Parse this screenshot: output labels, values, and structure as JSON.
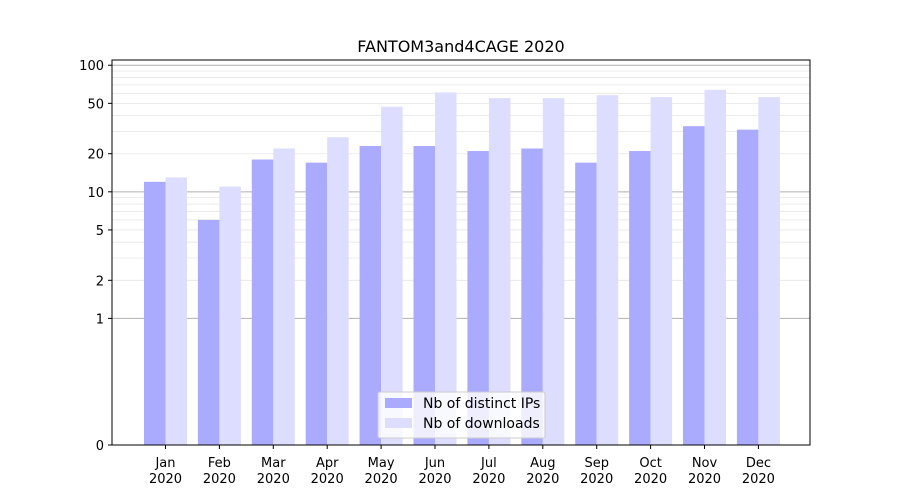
{
  "chart_data": {
    "type": "bar",
    "title": "FANTOM3and4CAGE 2020",
    "xlabel": "",
    "ylabel": "",
    "yscale": "symlog",
    "ylim": [
      0,
      110
    ],
    "yticks": [
      0,
      1,
      2,
      5,
      10,
      20,
      50,
      100
    ],
    "categories": [
      [
        "Jan",
        "2020"
      ],
      [
        "Feb",
        "2020"
      ],
      [
        "Mar",
        "2020"
      ],
      [
        "Apr",
        "2020"
      ],
      [
        "May",
        "2020"
      ],
      [
        "Jun",
        "2020"
      ],
      [
        "Jul",
        "2020"
      ],
      [
        "Aug",
        "2020"
      ],
      [
        "Sep",
        "2020"
      ],
      [
        "Oct",
        "2020"
      ],
      [
        "Nov",
        "2020"
      ],
      [
        "Dec",
        "2020"
      ]
    ],
    "series": [
      {
        "name": "Nb of distinct IPs",
        "color": "#aaaaff",
        "values": [
          12,
          6,
          18,
          17,
          23,
          23,
          21,
          22,
          17,
          21,
          33,
          31
        ]
      },
      {
        "name": "Nb of downloads",
        "color": "#ddddff",
        "values": [
          13,
          11,
          22,
          27,
          47,
          61,
          55,
          55,
          58,
          56,
          64,
          56
        ]
      }
    ],
    "legend": "bottom-center",
    "grid": true
  }
}
